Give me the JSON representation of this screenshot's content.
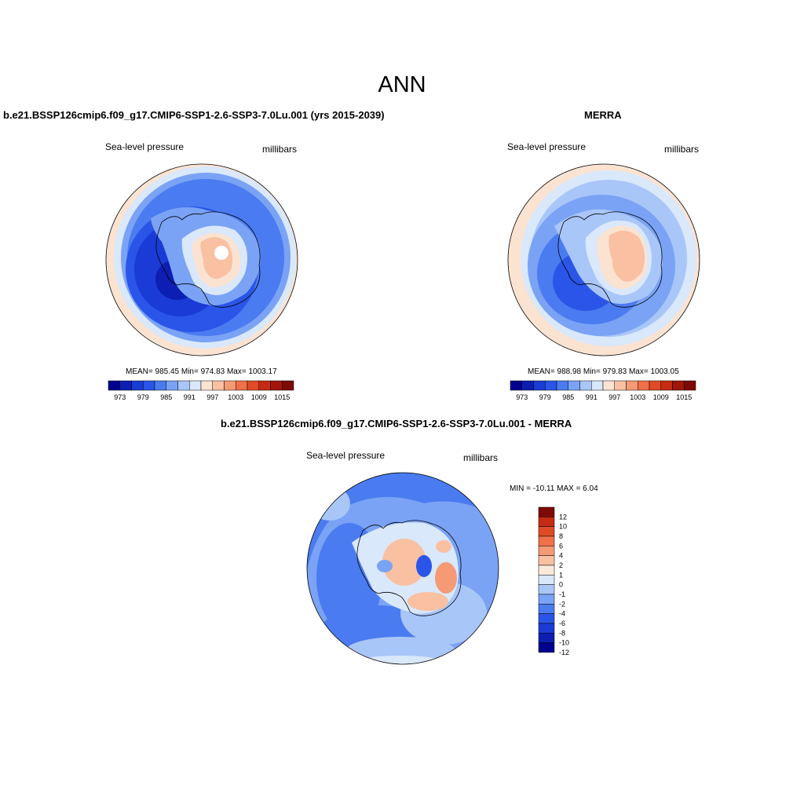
{
  "title": "ANN",
  "panel_left": {
    "title": "b.e21.BSSP126cmip6.f09_g17.CMIP6-SSP1-2.6-SSP3-7.0Lu.001 (yrs 2015-2039)",
    "variable": "Sea-level pressure",
    "units": "millibars",
    "stats": "MEAN= 985.45  Min= 974.83  Max= 1003.17"
  },
  "panel_right": {
    "title": "MERRA",
    "variable": "Sea-level pressure",
    "units": "millibars",
    "stats": "MEAN= 988.98  Min= 979.83  Max= 1003.05"
  },
  "panel_diff": {
    "title": "b.e21.BSSP126cmip6.f09_g17.CMIP6-SSP1-2.6-SSP3-7.0Lu.001 - MERRA",
    "variable": "Sea-level pressure",
    "units": "millibars",
    "minmax": "MIN = -10.11 MAX =   6.04"
  },
  "colorbar_abs": {
    "colors": [
      "#00008f",
      "#0c1fb2",
      "#1b3bd6",
      "#2a55e8",
      "#4a7bf0",
      "#7aa3f5",
      "#a9c6f9",
      "#d9e8fb",
      "#fbe3d2",
      "#f9c0a2",
      "#f59a74",
      "#ef7049",
      "#e04a25",
      "#c52a12",
      "#a1150a",
      "#7e0a05"
    ],
    "labels": [
      "973",
      "979",
      "985",
      "991",
      "997",
      "1003",
      "1009",
      "1015"
    ]
  },
  "colorbar_diff": {
    "colors": [
      "#00008f",
      "#0c1fb2",
      "#1b3bd6",
      "#2a55e8",
      "#4a7bf0",
      "#7aa3f5",
      "#a9c6f9",
      "#d9e8fb",
      "#fbe9da",
      "#f9c0a2",
      "#f59a74",
      "#ef7049",
      "#e04a25",
      "#c52a12",
      "#7e0a05"
    ],
    "labels": [
      "12",
      "10",
      "8",
      "6",
      "4",
      "2",
      "1",
      "0",
      "-1",
      "-2",
      "-4",
      "-6",
      "-8",
      "-10",
      "-12"
    ]
  }
}
